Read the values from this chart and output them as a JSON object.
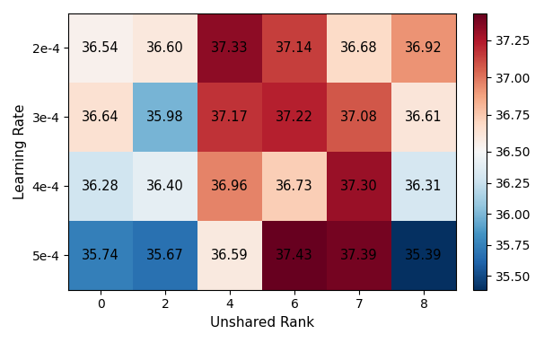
{
  "values": [
    [
      36.54,
      36.6,
      37.33,
      37.14,
      36.68,
      36.92
    ],
    [
      36.64,
      35.98,
      37.17,
      37.22,
      37.08,
      36.61
    ],
    [
      36.28,
      36.4,
      36.96,
      36.73,
      37.3,
      36.31
    ],
    [
      35.74,
      35.67,
      36.59,
      37.43,
      37.39,
      35.39
    ]
  ],
  "x_labels": [
    "0",
    "2",
    "4",
    "6",
    "7",
    "8"
  ],
  "y_labels": [
    "2e-4",
    "3e-4",
    "4e-4",
    "5e-4"
  ],
  "xlabel": "Unshared Rank",
  "ylabel": "Learning Rate",
  "vmin": 35.39,
  "vmax": 37.43,
  "vcenter": 36.5,
  "colorbar_ticks": [
    35.5,
    35.75,
    36.0,
    36.25,
    36.5,
    36.75,
    37.0,
    37.25
  ],
  "colorbar_ticklabels": [
    "35.50",
    "35.75",
    "36.00",
    "36.25",
    "36.50",
    "36.75",
    "37.00",
    "37.25"
  ],
  "text_fontsize": 10.5,
  "label_fontsize": 11,
  "tick_fontsize": 10
}
